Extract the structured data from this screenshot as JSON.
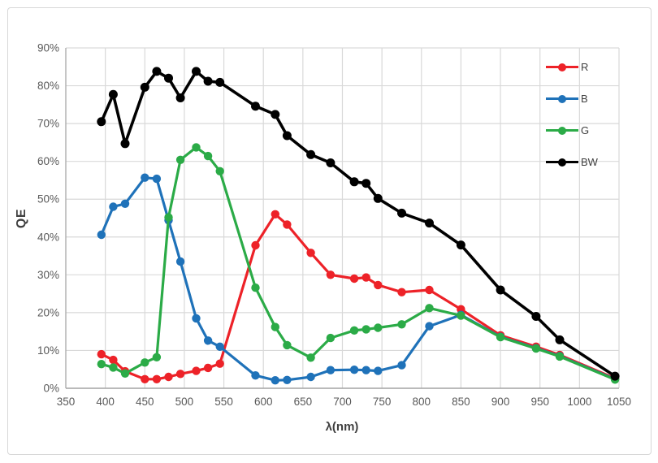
{
  "chart_data": {
    "type": "line",
    "title": "",
    "xlabel": "λ(nm)",
    "ylabel": "QE",
    "xlim": [
      350,
      1050
    ],
    "ylim": [
      0,
      90
    ],
    "x_ticks": [
      350,
      400,
      450,
      500,
      550,
      600,
      650,
      700,
      750,
      800,
      850,
      900,
      950,
      1000,
      1050
    ],
    "y_ticks": [
      0,
      10,
      20,
      30,
      40,
      50,
      60,
      70,
      80,
      90
    ],
    "y_tick_suffix": "%",
    "grid": true,
    "legend_position": "top-right-inside",
    "x": [
      395,
      410,
      425,
      450,
      465,
      480,
      495,
      515,
      530,
      545,
      590,
      615,
      630,
      660,
      685,
      715,
      730,
      745,
      775,
      810,
      850,
      900,
      945,
      975,
      1045
    ],
    "series": [
      {
        "name": "R",
        "color": "#ed2228",
        "values_percent": [
          9.0,
          7.5,
          4.5,
          2.4,
          2.4,
          3.0,
          3.8,
          4.6,
          5.4,
          6.5,
          37.8,
          46.0,
          43.3,
          35.8,
          30.0,
          29.0,
          29.3,
          27.3,
          25.4,
          26.0,
          20.9,
          14.0,
          11.0,
          8.8,
          2.6
        ]
      },
      {
        "name": "B",
        "color": "#1f72b9",
        "values_percent": [
          40.6,
          48.0,
          48.8,
          55.7,
          55.4,
          44.4,
          33.5,
          18.5,
          12.6,
          11.0,
          3.4,
          2.1,
          2.2,
          3.0,
          4.8,
          4.9,
          4.8,
          4.6,
          6.1,
          16.4,
          19.4,
          13.6,
          10.6,
          8.5,
          2.4
        ]
      },
      {
        "name": "G",
        "color": "#2bab47",
        "values_percent": [
          6.4,
          5.5,
          3.9,
          6.8,
          8.2,
          45.2,
          60.4,
          63.7,
          61.4,
          57.4,
          26.6,
          16.2,
          11.4,
          8.1,
          13.3,
          15.3,
          15.6,
          16.0,
          16.9,
          21.2,
          19.2,
          13.5,
          10.5,
          8.4,
          2.3
        ]
      },
      {
        "name": "BW",
        "color": "#000000",
        "values_percent": [
          70.5,
          77.7,
          64.7,
          79.6,
          83.8,
          82.0,
          76.8,
          83.8,
          81.2,
          80.9,
          74.6,
          72.4,
          66.8,
          61.8,
          59.6,
          54.6,
          54.2,
          50.2,
          46.3,
          43.7,
          37.9,
          26.0,
          19.0,
          12.8,
          3.2
        ]
      }
    ],
    "colors": {
      "gridline": "#d9d9d9",
      "axis_line": "#a6a6a6",
      "tick_label": "#595959",
      "axis_title": "#3f3f3f",
      "background": "#ffffff"
    }
  }
}
